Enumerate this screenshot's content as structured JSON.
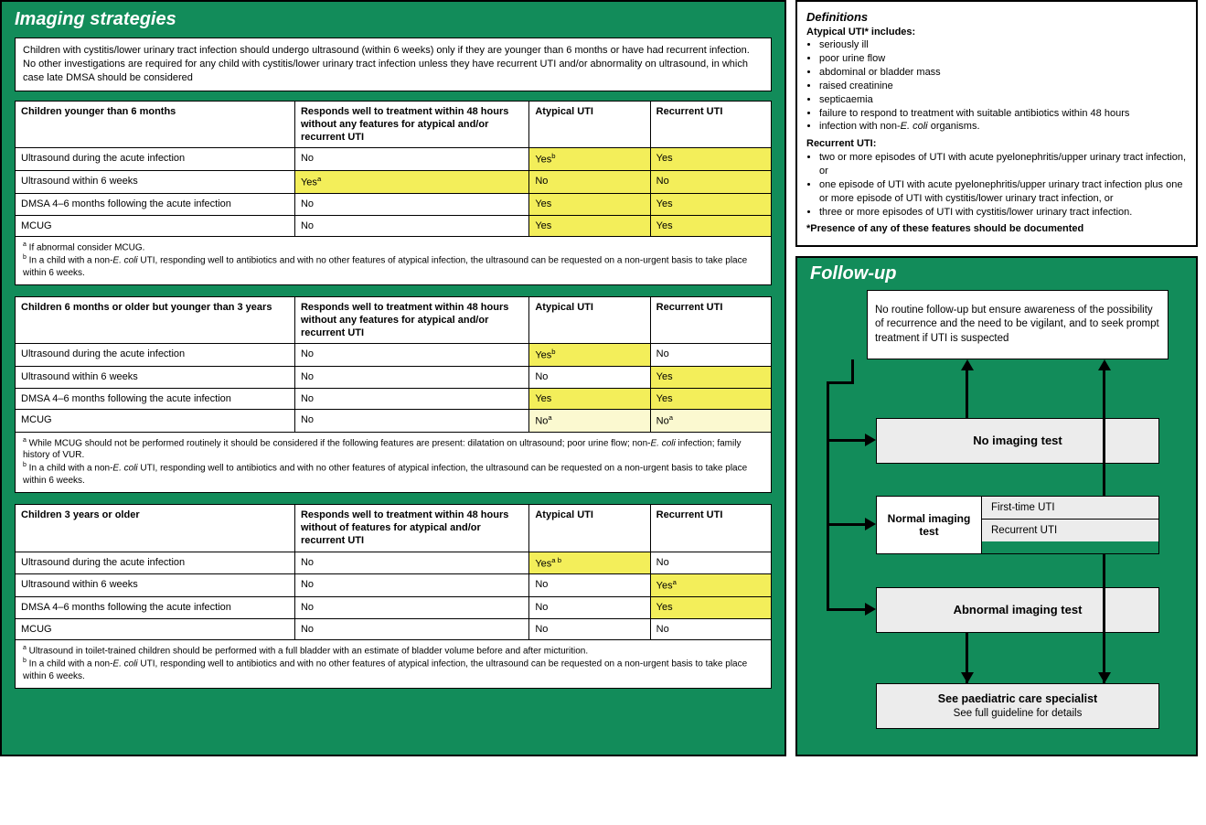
{
  "colors": {
    "green": "#128c5a",
    "highlight": "#f3ee5a",
    "highlight_light": "#fbf9d0",
    "box_grey": "#ececec",
    "border": "#000000",
    "white": "#ffffff"
  },
  "imaging": {
    "title": "Imaging strategies",
    "intro": "Children with cystitis/lower urinary tract infection should undergo ultrasound (within 6 weeks) only if they are younger than 6 months or have had recurrent infection. No other investigations are required for any child with cystitis/lower urinary tract infection unless they have recurrent UTI and/or abnormality on ultrasound, in which case late DMSA should be considered",
    "tables": [
      {
        "group": "Children younger than 6 months",
        "col2": "Responds well to treatment within 48 hours without any features for atypical and/or recurrent UTI",
        "col3": "Atypical UTI",
        "col4": "Recurrent UTI",
        "rows": [
          {
            "test": "Ultrasound during the acute infection",
            "resp": "No",
            "atyp": {
              "v": "Yes",
              "sup": "b",
              "hl": true
            },
            "rec": {
              "v": "Yes",
              "hl": true
            }
          },
          {
            "test": "Ultrasound within 6 weeks",
            "resp": {
              "v": "Yes",
              "sup": "a",
              "hl": true
            },
            "atyp": {
              "v": "No",
              "hl": true
            },
            "rec": {
              "v": "No",
              "hl": true
            }
          },
          {
            "test": "DMSA 4–6 months following the acute infection",
            "resp": "No",
            "atyp": {
              "v": "Yes",
              "hl": true
            },
            "rec": {
              "v": "Yes",
              "hl": true
            }
          },
          {
            "test": "MCUG",
            "resp": "No",
            "atyp": {
              "v": "Yes",
              "hl": true
            },
            "rec": {
              "v": "Yes",
              "hl": true
            }
          }
        ],
        "footnotes": [
          {
            "sup": "a",
            "text": "If abnormal consider MCUG."
          },
          {
            "sup": "b",
            "text": "In a child with a non-<i>E. coli</i> UTI, responding well to antibiotics and with no other features of atypical infection, the ultrasound can be requested on a non-urgent basis to take place within 6 weeks."
          }
        ]
      },
      {
        "group": "Children 6 months or older but younger than 3 years",
        "col2": "Responds well to treatment within 48 hours without any features for atypical and/or recurrent UTI",
        "col3": "Atypical UTI",
        "col4": "Recurrent UTI",
        "rows": [
          {
            "test": "Ultrasound during the acute infection",
            "resp": "No",
            "atyp": {
              "v": "Yes",
              "sup": "b",
              "hl": true
            },
            "rec": "No"
          },
          {
            "test": "Ultrasound within 6 weeks",
            "resp": "No",
            "atyp": "No",
            "rec": {
              "v": "Yes",
              "hl": true
            }
          },
          {
            "test": "DMSA 4–6 months following the acute infection",
            "resp": "No",
            "atyp": {
              "v": "Yes",
              "hl": true
            },
            "rec": {
              "v": "Yes",
              "hl": true
            }
          },
          {
            "test": "MCUG",
            "resp": "No",
            "atyp": {
              "v": "No",
              "sup": "a",
              "hl": "light"
            },
            "rec": {
              "v": "No",
              "sup": "a",
              "hl": "light"
            }
          }
        ],
        "footnotes": [
          {
            "sup": "a",
            "text": "While MCUG should not be performed routinely it should be considered if the following features are present: dilatation on ultrasound; poor urine flow; non-<i>E. coli</i> infection; family history of VUR."
          },
          {
            "sup": "b",
            "text": "In a child with a non-<i>E. coli</i> UTI, responding well to antibiotics and with no other features of atypical infection, the ultrasound can be requested on a non-urgent basis to take place within 6 weeks."
          }
        ]
      },
      {
        "group": "Children 3  years or older",
        "col2": "Responds well to treatment within 48 hours without  of features for atypical and/or recurrent UTI",
        "col3": "Atypical UTI",
        "col4": "Recurrent UTI",
        "rows": [
          {
            "test": "Ultrasound during the acute infection",
            "resp": "No",
            "atyp": {
              "v": "Yes",
              "sup": "a b",
              "hl": true
            },
            "rec": "No"
          },
          {
            "test": "Ultrasound within 6 weeks",
            "resp": "No",
            "atyp": "No",
            "rec": {
              "v": "Yes",
              "sup": "a",
              "hl": true
            }
          },
          {
            "test": "DMSA 4–6 months following the acute infection",
            "resp": "No",
            "atyp": "No",
            "rec": {
              "v": "Yes",
              "hl": true
            }
          },
          {
            "test": "MCUG",
            "resp": "No",
            "atyp": "No",
            "rec": "No"
          }
        ],
        "footnotes": [
          {
            "sup": "a",
            "text": "Ultrasound in toilet-trained children should be performed with a full bladder with an estimate of bladder volume before and after micturition."
          },
          {
            "sup": "b",
            "text": "In a child with a non-<i>E. coli</i> UTI, responding well to antibiotics and with no other features of atypical infection, the ultrasound can be requested on a non-urgent basis to take place within 6 weeks."
          }
        ]
      }
    ]
  },
  "definitions": {
    "header": "Definitions",
    "atypical_label": "Atypical UTI* includes:",
    "atypical": [
      "seriously ill",
      "poor urine flow",
      "abdominal or bladder mass",
      "raised creatinine",
      "septicaemia",
      "failure to respond to treatment with suitable antibiotics within 48 hours",
      "infection with non-<i>E. coli</i> organisms."
    ],
    "recurrent_label": "Recurrent UTI:",
    "recurrent": [
      "two or more episodes of UTI with acute pyelonephritis/upper urinary tract infection, or",
      "one episode of UTI with acute pyelonephritis/upper urinary tract infection plus one or more episode of UTI with cystitis/lower urinary tract infection, or",
      "three or more episodes of UTI with cystitis/lower urinary tract infection."
    ],
    "final": "*Presence of any of these features should be documented"
  },
  "followup": {
    "title": "Follow-up",
    "top_box": "No routine follow-up but ensure awareness of the possibility of recurrence and the need to be vigilant, and to seek prompt treatment if UTI is suspected",
    "no_imaging": "No imaging test",
    "normal_label": "Normal imaging test",
    "normal_rows": [
      "First-time UTI",
      "Recurrent UTI"
    ],
    "abnormal": "Abnormal imaging test",
    "specialist_bold": "See paediatric care specialist",
    "specialist_sub": "See full guideline for details"
  }
}
